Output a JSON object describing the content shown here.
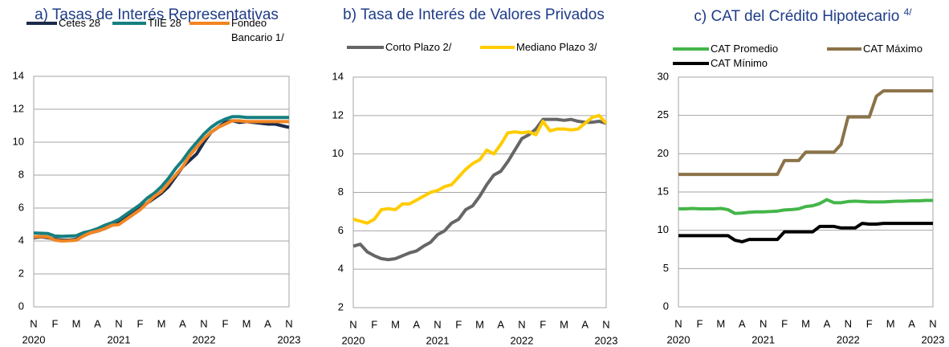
{
  "chart_data": [
    {
      "type": "line",
      "title": "a) Tasas de Interés Representativas",
      "categories": [
        "N",
        null,
        null,
        "F",
        null,
        null,
        "M",
        null,
        null,
        "A",
        null,
        null,
        "N",
        null,
        null,
        "F",
        null,
        null,
        "M",
        null,
        null,
        "A",
        null,
        null,
        "N",
        null,
        null,
        "F",
        null,
        null,
        "M",
        null,
        null,
        "A",
        null,
        null,
        "N"
      ],
      "years": [
        "2020",
        null,
        null,
        null,
        null,
        null,
        null,
        null,
        null,
        null,
        null,
        null,
        "2021",
        null,
        null,
        null,
        null,
        null,
        null,
        null,
        null,
        null,
        null,
        null,
        "2022",
        null,
        null,
        null,
        null,
        null,
        null,
        null,
        null,
        null,
        null,
        null,
        "2023"
      ],
      "ylim": [
        0,
        14
      ],
      "yticks": [
        0,
        2,
        4,
        6,
        8,
        10,
        12,
        14
      ],
      "grid": true,
      "series": [
        {
          "name": "Cetes 28",
          "color": "#1c2b4a",
          "values": [
            4.2,
            4.25,
            4.2,
            4.1,
            4.05,
            4.05,
            4.1,
            4.3,
            4.5,
            4.6,
            4.75,
            4.95,
            5.1,
            5.4,
            5.7,
            6.0,
            6.3,
            6.6,
            6.9,
            7.3,
            7.9,
            8.5,
            8.9,
            9.3,
            10.0,
            10.6,
            10.9,
            11.2,
            11.3,
            11.2,
            11.25,
            11.2,
            11.15,
            11.1,
            11.1,
            11.0,
            10.9
          ]
        },
        {
          "name": "TIIE 28",
          "color": "#167f80",
          "values": [
            4.48,
            4.47,
            4.45,
            4.3,
            4.28,
            4.3,
            4.32,
            4.5,
            4.6,
            4.75,
            4.95,
            5.1,
            5.3,
            5.6,
            5.9,
            6.2,
            6.6,
            6.9,
            7.3,
            7.8,
            8.4,
            8.9,
            9.5,
            10.0,
            10.5,
            10.9,
            11.2,
            11.4,
            11.55,
            11.55,
            11.5,
            11.5,
            11.5,
            11.5,
            11.5,
            11.5,
            11.5
          ]
        },
        {
          "name": "Fondeo Bancario 1/",
          "color": "#f28522",
          "values": [
            4.25,
            4.27,
            4.25,
            4.05,
            4.0,
            4.02,
            4.05,
            4.3,
            4.5,
            4.6,
            4.75,
            4.95,
            5.0,
            5.3,
            5.6,
            5.9,
            6.3,
            6.7,
            7.0,
            7.5,
            8.0,
            8.5,
            9.2,
            9.7,
            10.2,
            10.6,
            10.9,
            11.1,
            11.3,
            11.3,
            11.25,
            11.25,
            11.25,
            11.25,
            11.25,
            11.25,
            11.25
          ]
        }
      ]
    },
    {
      "type": "line",
      "title": "b) Tasa de Interés de Valores Privados",
      "categories": [
        "N",
        null,
        null,
        "F",
        null,
        null,
        "M",
        null,
        null,
        "A",
        null,
        null,
        "N",
        null,
        null,
        "F",
        null,
        null,
        "M",
        null,
        null,
        "A",
        null,
        null,
        "N",
        null,
        null,
        "F",
        null,
        null,
        "M",
        null,
        null,
        "A",
        null,
        null,
        "N"
      ],
      "years": [
        "2020",
        null,
        null,
        null,
        null,
        null,
        null,
        null,
        null,
        null,
        null,
        null,
        "2021",
        null,
        null,
        null,
        null,
        null,
        null,
        null,
        null,
        null,
        null,
        null,
        "2022",
        null,
        null,
        null,
        null,
        null,
        null,
        null,
        null,
        null,
        null,
        null,
        "2023"
      ],
      "ylim": [
        2,
        14
      ],
      "yticks": [
        2,
        4,
        6,
        8,
        10,
        12,
        14
      ],
      "grid": true,
      "series": [
        {
          "name": "Corto Plazo 2/",
          "color": "#666666",
          "values": [
            5.2,
            5.3,
            4.9,
            4.7,
            4.55,
            4.5,
            4.55,
            4.7,
            4.85,
            4.95,
            5.2,
            5.4,
            5.8,
            6.0,
            6.4,
            6.6,
            7.1,
            7.3,
            7.8,
            8.4,
            8.9,
            9.1,
            9.6,
            10.2,
            10.8,
            11.0,
            11.3,
            11.8,
            11.8,
            11.8,
            11.75,
            11.8,
            11.7,
            11.65,
            11.65,
            11.7,
            11.6
          ]
        },
        {
          "name": "Mediano Plazo 3/",
          "color": "#ffcc00",
          "values": [
            6.6,
            6.5,
            6.4,
            6.6,
            7.1,
            7.15,
            7.1,
            7.4,
            7.4,
            7.6,
            7.8,
            8.0,
            8.1,
            8.3,
            8.4,
            8.8,
            9.2,
            9.5,
            9.7,
            10.2,
            10.0,
            10.5,
            11.1,
            11.15,
            11.1,
            11.15,
            11.0,
            11.7,
            11.2,
            11.3,
            11.3,
            11.25,
            11.3,
            11.6,
            11.9,
            12.0,
            11.6
          ]
        }
      ]
    },
    {
      "type": "line",
      "title": "c) CAT del Crédito Hipotecario",
      "title_note": "4/",
      "categories": [
        "N",
        null,
        null,
        "F",
        null,
        null,
        "M",
        null,
        null,
        "A",
        null,
        null,
        "N",
        null,
        null,
        "F",
        null,
        null,
        "M",
        null,
        null,
        "A",
        null,
        null,
        "N",
        null,
        null,
        "F",
        null,
        null,
        "M",
        null,
        null,
        "A",
        null,
        null,
        "N"
      ],
      "years": [
        "2020",
        null,
        null,
        null,
        null,
        null,
        null,
        null,
        null,
        null,
        null,
        null,
        "2021",
        null,
        null,
        null,
        null,
        null,
        null,
        null,
        null,
        null,
        null,
        null,
        "2022",
        null,
        null,
        null,
        null,
        null,
        null,
        null,
        null,
        null,
        null,
        null,
        "2023"
      ],
      "ylim": [
        0,
        30
      ],
      "yticks": [
        0,
        5,
        10,
        15,
        20,
        25,
        30
      ],
      "grid": true,
      "series": [
        {
          "name": "CAT Promedio",
          "color": "#44b649",
          "values": [
            12.8,
            12.8,
            12.85,
            12.8,
            12.8,
            12.8,
            12.85,
            12.7,
            12.2,
            12.25,
            12.35,
            12.4,
            12.4,
            12.45,
            12.5,
            12.65,
            12.7,
            12.8,
            13.1,
            13.2,
            13.5,
            14.0,
            13.6,
            13.6,
            13.75,
            13.8,
            13.75,
            13.7,
            13.7,
            13.7,
            13.75,
            13.8,
            13.8,
            13.85,
            13.85,
            13.9,
            13.9
          ]
        },
        {
          "name": "CAT Máximo",
          "color": "#8b7248",
          "values": [
            17.3,
            17.3,
            17.3,
            17.3,
            17.3,
            17.3,
            17.3,
            17.3,
            17.3,
            17.3,
            17.3,
            17.3,
            17.3,
            17.3,
            17.3,
            19.1,
            19.1,
            19.1,
            20.2,
            20.2,
            20.2,
            20.2,
            20.2,
            21.2,
            24.8,
            24.8,
            24.8,
            24.8,
            27.5,
            28.2,
            28.2,
            28.2,
            28.2,
            28.2,
            28.2,
            28.2,
            28.2
          ]
        },
        {
          "name": "CAT Mínimo",
          "color": "#000000",
          "values": [
            9.3,
            9.3,
            9.3,
            9.3,
            9.3,
            9.3,
            9.3,
            9.3,
            8.7,
            8.5,
            8.8,
            8.8,
            8.8,
            8.8,
            8.8,
            9.8,
            9.8,
            9.8,
            9.8,
            9.8,
            10.5,
            10.5,
            10.5,
            10.3,
            10.3,
            10.3,
            10.9,
            10.8,
            10.8,
            10.9,
            10.9,
            10.9,
            10.9,
            10.9,
            10.9,
            10.9,
            10.9
          ]
        }
      ]
    }
  ]
}
